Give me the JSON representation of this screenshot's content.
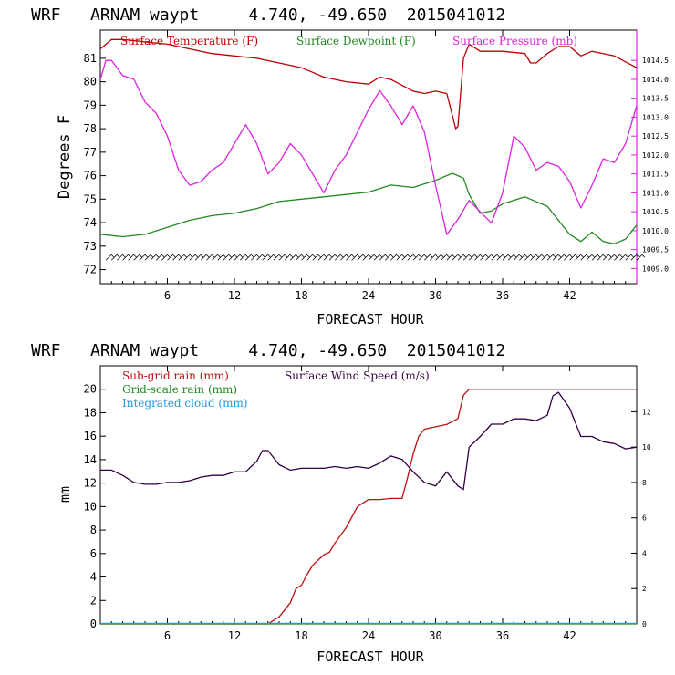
{
  "colors": {
    "temperature": "#bb0000",
    "dewpoint": "#228822",
    "pressure": "#dd22dd",
    "subgrid_rain": "#bb1111",
    "gridscale_rain": "#228822",
    "cloud": "#2299dd",
    "wind": "#330044",
    "barbs": "#000000"
  },
  "chart_data": [
    {
      "type": "line",
      "title": "WRF   ARNAM waypt     4.740, -49.650  2015041012",
      "xlabel": "FORECAST HOUR",
      "ylabel": "Degrees F",
      "xlim": [
        0,
        48
      ],
      "ylim": [
        71.4,
        82.2
      ],
      "y2lim": [
        1008.6,
        1015.3
      ],
      "xticks": [
        6,
        12,
        18,
        24,
        30,
        36,
        42
      ],
      "yticks": [
        72,
        73,
        74,
        75,
        76,
        77,
        78,
        79,
        80,
        81
      ],
      "y2ticks": [
        "1009.0",
        "1009.5",
        "1010.0",
        "1010.5",
        "1011.0",
        "1011.5",
        "1012.0",
        "1012.5",
        "1013.0",
        "1013.5",
        "1014.0",
        "1014.5"
      ],
      "legend": [
        "Surface Temperature (F)",
        "Surface Dewpoint (F)",
        "Surface Pressure (mb)"
      ],
      "series": [
        {
          "name": "Surface Temperature (F)",
          "axis": "left",
          "x": [
            0,
            1,
            2,
            4,
            6,
            8,
            10,
            12,
            14,
            16,
            18,
            19,
            20,
            22,
            24,
            25,
            26,
            28,
            29,
            30,
            31,
            31.8,
            32,
            32.5,
            33,
            34,
            36,
            38,
            38.5,
            39,
            40,
            41,
            42,
            43,
            44,
            46,
            48
          ],
          "y": [
            81.4,
            81.8,
            81.8,
            81.7,
            81.6,
            81.4,
            81.2,
            81.1,
            81.0,
            80.8,
            80.6,
            80.4,
            80.2,
            80.0,
            79.9,
            80.2,
            80.1,
            79.6,
            79.5,
            79.6,
            79.5,
            78.0,
            78.1,
            81.0,
            81.6,
            81.3,
            81.3,
            81.2,
            80.8,
            80.8,
            81.2,
            81.5,
            81.5,
            81.1,
            81.3,
            81.1,
            80.6
          ]
        },
        {
          "name": "Surface Dewpoint (F)",
          "axis": "left",
          "x": [
            0,
            2,
            4,
            6,
            8,
            10,
            12,
            14,
            16,
            18,
            20,
            22,
            24,
            26,
            28,
            30,
            31.5,
            32.5,
            33,
            34,
            35,
            36,
            38,
            40,
            42,
            43,
            44,
            45,
            46,
            47,
            48
          ],
          "y": [
            73.5,
            73.4,
            73.5,
            73.8,
            74.1,
            74.3,
            74.4,
            74.6,
            74.9,
            75.0,
            75.1,
            75.2,
            75.3,
            75.6,
            75.5,
            75.8,
            76.1,
            75.9,
            75.2,
            74.4,
            74.5,
            74.8,
            75.1,
            74.7,
            73.5,
            73.2,
            73.6,
            73.2,
            73.1,
            73.3,
            73.9
          ]
        },
        {
          "name": "Surface Pressure (mb)",
          "axis": "right",
          "x": [
            0,
            0.5,
            1,
            2,
            3,
            4,
            5,
            6,
            7,
            8,
            9,
            10,
            11,
            12,
            13,
            14,
            15,
            16,
            17,
            18,
            19,
            20,
            21,
            22,
            23,
            24,
            25,
            26,
            27,
            28,
            29,
            30,
            31,
            32,
            33,
            34,
            35,
            36,
            37,
            38,
            39,
            40,
            41,
            42,
            43,
            44,
            45,
            46,
            47,
            48
          ],
          "y": [
            1014.0,
            1014.5,
            1014.5,
            1014.1,
            1014.0,
            1013.4,
            1013.1,
            1012.5,
            1011.6,
            1011.2,
            1011.3,
            1011.6,
            1011.8,
            1012.3,
            1012.8,
            1012.3,
            1011.5,
            1011.8,
            1012.3,
            1012.0,
            1011.5,
            1011.0,
            1011.6,
            1012.0,
            1012.6,
            1013.2,
            1013.7,
            1013.3,
            1012.8,
            1013.3,
            1012.6,
            1011.2,
            1009.9,
            1010.3,
            1010.8,
            1010.5,
            1010.2,
            1011.0,
            1012.5,
            1012.2,
            1011.6,
            1011.8,
            1011.7,
            1011.3,
            1010.6,
            1011.2,
            1011.9,
            1011.8,
            1012.3,
            1013.3
          ]
        }
      ],
      "wind_barbs": {
        "y": 72.4,
        "x_start": 0.5,
        "x_end": 48,
        "step": 0.5
      }
    },
    {
      "type": "line",
      "title": "WRF   ARNAM waypt     4.740, -49.650  2015041012",
      "xlabel": "FORECAST HOUR",
      "ylabel": "mm",
      "xlim": [
        0,
        48
      ],
      "ylim": [
        0,
        22
      ],
      "y2lim": [
        0,
        14.6
      ],
      "xticks": [
        6,
        12,
        18,
        24,
        30,
        36,
        42
      ],
      "yticks": [
        0,
        2,
        4,
        6,
        8,
        10,
        12,
        14,
        16,
        18,
        20
      ],
      "y2ticks": [
        0,
        2,
        4,
        6,
        8,
        10,
        12
      ],
      "legend": [
        "Sub-grid rain (mm)",
        "Grid-scale rain (mm)",
        "Integrated cloud (mm)",
        "Surface Wind Speed (m/s)"
      ],
      "series": [
        {
          "name": "Sub-grid rain (mm)",
          "axis": "left",
          "x": [
            0,
            15,
            16,
            17,
            17.5,
            18,
            18.5,
            19,
            20,
            20.5,
            21,
            22,
            23,
            24,
            25,
            26,
            27,
            27.5,
            28,
            28.5,
            29,
            30,
            31,
            32,
            32.5,
            33,
            48
          ],
          "y": [
            0,
            0,
            0.6,
            1.8,
            3.0,
            3.3,
            4.2,
            5.0,
            5.9,
            6.1,
            6.9,
            8.2,
            10.0,
            10.6,
            10.6,
            10.7,
            10.7,
            12.5,
            14.5,
            16.0,
            16.6,
            16.8,
            17.0,
            17.5,
            19.5,
            20.0,
            20.0
          ]
        },
        {
          "name": "Grid-scale rain (mm)",
          "axis": "left",
          "x": [
            0,
            48
          ],
          "y": [
            0,
            0
          ]
        },
        {
          "name": "Integrated cloud (mm)",
          "axis": "left",
          "x": [
            0,
            48
          ],
          "y": [
            0.05,
            0.05
          ]
        },
        {
          "name": "Surface Wind Speed (m/s)",
          "axis": "right",
          "x": [
            0,
            1,
            2,
            3,
            4,
            5,
            6,
            7,
            8,
            9,
            10,
            11,
            12,
            13,
            14,
            14.5,
            15,
            16,
            17,
            18,
            19,
            20,
            21,
            22,
            23,
            24,
            25,
            26,
            27,
            28,
            29,
            30,
            31,
            32,
            32.5,
            33,
            34,
            35,
            36,
            37,
            38,
            39,
            40,
            40.5,
            41,
            42,
            43,
            44,
            45,
            46,
            47,
            48
          ],
          "y": [
            8.7,
            8.7,
            8.4,
            8.0,
            7.9,
            7.9,
            8.0,
            8.0,
            8.1,
            8.3,
            8.4,
            8.4,
            8.6,
            8.6,
            9.2,
            9.8,
            9.8,
            9.0,
            8.7,
            8.8,
            8.8,
            8.8,
            8.9,
            8.8,
            8.9,
            8.8,
            9.1,
            9.5,
            9.3,
            8.6,
            8.0,
            7.8,
            8.6,
            7.8,
            7.6,
            10.0,
            10.6,
            11.3,
            11.3,
            11.6,
            11.6,
            11.5,
            11.8,
            12.9,
            13.1,
            12.2,
            10.6,
            10.6,
            10.3,
            10.2,
            9.9,
            10.0
          ]
        }
      ]
    }
  ]
}
